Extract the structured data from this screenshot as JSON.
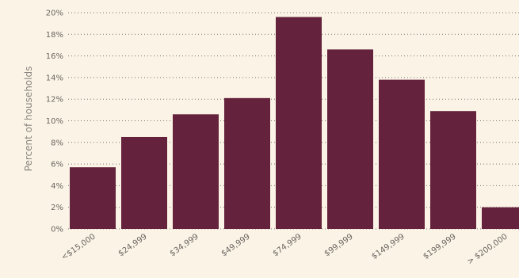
{
  "chart_data": {
    "type": "bar",
    "categories": [
      "<$15,000",
      "$24,999",
      "$34,999",
      "$49,999",
      "$74,999",
      "$99,999",
      "$149,999",
      "$199,999",
      "> $200,000"
    ],
    "values": [
      5.7,
      8.5,
      10.6,
      12.1,
      19.6,
      16.6,
      13.8,
      10.9,
      2.0
    ],
    "ylabel": "Percent of households",
    "yticks": [
      "0%",
      "2%",
      "4%",
      "6%",
      "8%",
      "10%",
      "12%",
      "14%",
      "16%",
      "18%",
      "20%"
    ],
    "ylim": [
      0,
      20
    ],
    "grid": true,
    "bar_color": "#65223c",
    "grid_color": "#7a7470"
  }
}
